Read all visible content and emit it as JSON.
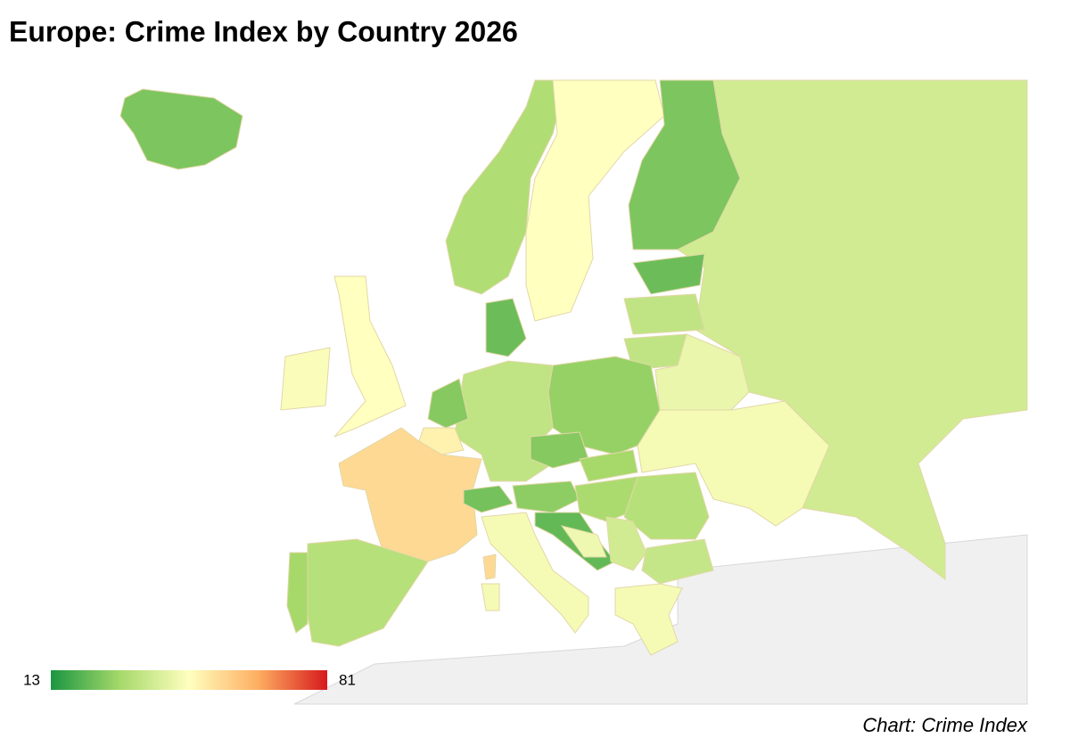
{
  "chart_data": {
    "type": "choropleth",
    "title": "Europe: Crime Index by Country 2026",
    "source": "Chart: Crime Index",
    "zmin": 13,
    "zmax": 81,
    "colorscale": [
      "#1a9641",
      "#a6d96a",
      "#ffffbf",
      "#fdae61",
      "#d7191c"
    ],
    "values": [
      25,
      32,
      47,
      25,
      38,
      23,
      35,
      35,
      43,
      45,
      28,
      35,
      23,
      26,
      50,
      55,
      24,
      27,
      26,
      30,
      31,
      33,
      22,
      38,
      44,
      36,
      45,
      45,
      33,
      30,
      47,
      46
    ]
  }
}
